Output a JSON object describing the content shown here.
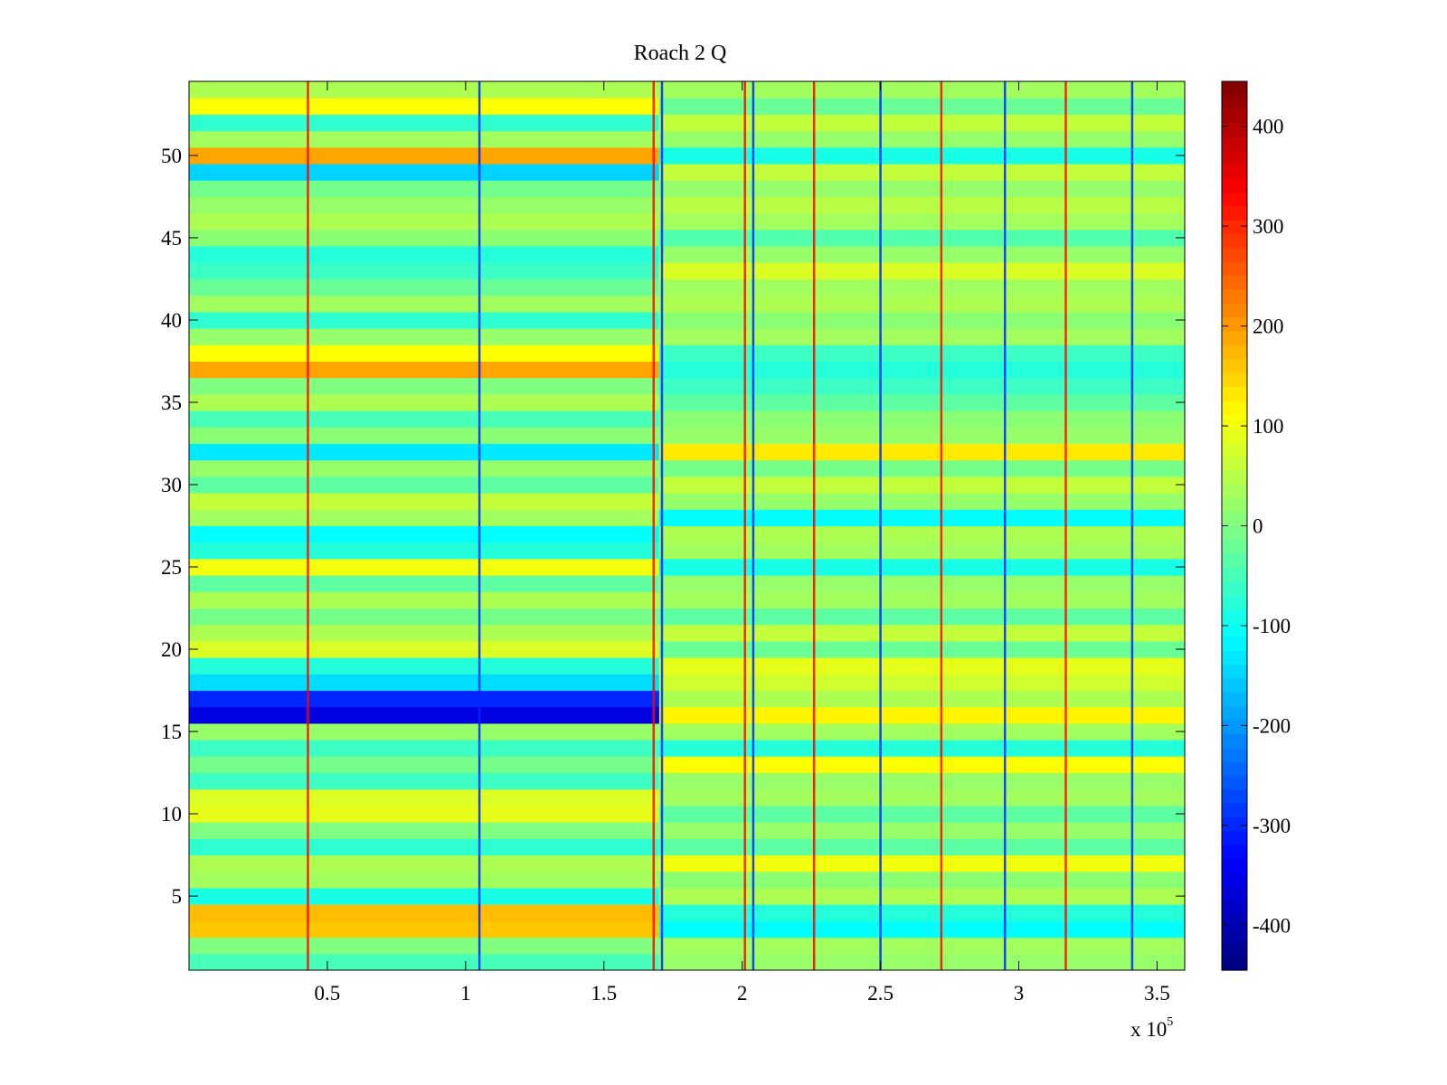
{
  "chart_data": {
    "type": "heatmap",
    "title": "Roach 2 Q",
    "xlabel": "",
    "ylabel": "",
    "x_exponent_label": {
      "base": "x 10",
      "exponent": "5"
    },
    "x_ticks": [
      {
        "value": 0.5,
        "label": "0.5"
      },
      {
        "value": 1.0,
        "label": "1"
      },
      {
        "value": 1.5,
        "label": "1.5"
      },
      {
        "value": 2.0,
        "label": "2"
      },
      {
        "value": 2.5,
        "label": "2.5"
      },
      {
        "value": 3.0,
        "label": "3"
      },
      {
        "value": 3.5,
        "label": "3.5"
      }
    ],
    "y_ticks": [
      {
        "value": 5,
        "label": "5"
      },
      {
        "value": 10,
        "label": "10"
      },
      {
        "value": 15,
        "label": "15"
      },
      {
        "value": 20,
        "label": "20"
      },
      {
        "value": 25,
        "label": "25"
      },
      {
        "value": 30,
        "label": "30"
      },
      {
        "value": 35,
        "label": "35"
      },
      {
        "value": 40,
        "label": "40"
      },
      {
        "value": 45,
        "label": "45"
      },
      {
        "value": 50,
        "label": "50"
      }
    ],
    "xlim": [
      0,
      3.6
    ],
    "x_scale_note": "x 10^5",
    "ylim": [
      0.5,
      54.5
    ],
    "channels": 54,
    "colorbar": {
      "colormap": "jet",
      "range": [
        -445,
        445
      ],
      "ticks": [
        {
          "value": 400,
          "label": "400"
        },
        {
          "value": 300,
          "label": "300"
        },
        {
          "value": 200,
          "label": "200"
        },
        {
          "value": 100,
          "label": "100"
        },
        {
          "value": 0,
          "label": "0"
        },
        {
          "value": -100,
          "label": "-100"
        },
        {
          "value": -200,
          "label": "-200"
        },
        {
          "value": -300,
          "label": "-300"
        },
        {
          "value": -400,
          "label": "-400"
        }
      ]
    },
    "segments": [
      {
        "x_start": 0.0,
        "x_end": 1.7
      },
      {
        "x_start": 1.7,
        "x_end": 3.6
      }
    ],
    "rows": [
      {
        "channel": 1,
        "before": -50,
        "after": 20
      },
      {
        "channel": 2,
        "before": 0,
        "after": 30
      },
      {
        "channel": 3,
        "before": 160,
        "after": -110
      },
      {
        "channel": 4,
        "before": 170,
        "after": -80
      },
      {
        "channel": 5,
        "before": -90,
        "after": 40
      },
      {
        "channel": 6,
        "before": 30,
        "after": 10
      },
      {
        "channel": 7,
        "before": 40,
        "after": 100
      },
      {
        "channel": 8,
        "before": -70,
        "after": -30
      },
      {
        "channel": 9,
        "before": 0,
        "after": 20
      },
      {
        "channel": 10,
        "before": 90,
        "after": -30
      },
      {
        "channel": 11,
        "before": 80,
        "after": 30
      },
      {
        "channel": 12,
        "before": -60,
        "after": 20
      },
      {
        "channel": 13,
        "before": -10,
        "after": 110
      },
      {
        "channel": 14,
        "before": -60,
        "after": -80
      },
      {
        "channel": 15,
        "before": 20,
        "after": 30
      },
      {
        "channel": 16,
        "before": -360,
        "after": 120
      },
      {
        "channel": 17,
        "before": -300,
        "after": 40
      },
      {
        "channel": 18,
        "before": -140,
        "after": 70
      },
      {
        "channel": 19,
        "before": -80,
        "after": 90
      },
      {
        "channel": 20,
        "before": 80,
        "after": -20
      },
      {
        "channel": 21,
        "before": 40,
        "after": 60
      },
      {
        "channel": 22,
        "before": -10,
        "after": -30
      },
      {
        "channel": 23,
        "before": 40,
        "after": 30
      },
      {
        "channel": 24,
        "before": -30,
        "after": 20
      },
      {
        "channel": 25,
        "before": 100,
        "after": -90
      },
      {
        "channel": 26,
        "before": -80,
        "after": 30
      },
      {
        "channel": 27,
        "before": -110,
        "after": 40
      },
      {
        "channel": 28,
        "before": 30,
        "after": -110
      },
      {
        "channel": 29,
        "before": 60,
        "after": 20
      },
      {
        "channel": 30,
        "before": -30,
        "after": 60
      },
      {
        "channel": 31,
        "before": 20,
        "after": -10
      },
      {
        "channel": 32,
        "before": -130,
        "after": 130
      },
      {
        "channel": 33,
        "before": 10,
        "after": 20
      },
      {
        "channel": 34,
        "before": -50,
        "after": 10
      },
      {
        "channel": 35,
        "before": 40,
        "after": -30
      },
      {
        "channel": 36,
        "before": 0,
        "after": -60
      },
      {
        "channel": 37,
        "before": 190,
        "after": -80
      },
      {
        "channel": 38,
        "before": 110,
        "after": -60
      },
      {
        "channel": 39,
        "before": 20,
        "after": 30
      },
      {
        "channel": 40,
        "before": -70,
        "after": 10
      },
      {
        "channel": 41,
        "before": 30,
        "after": 40
      },
      {
        "channel": 42,
        "before": -20,
        "after": 30
      },
      {
        "channel": 43,
        "before": -60,
        "after": 80
      },
      {
        "channel": 44,
        "before": -80,
        "after": 20
      },
      {
        "channel": 45,
        "before": 10,
        "after": -40
      },
      {
        "channel": 46,
        "before": 40,
        "after": 30
      },
      {
        "channel": 47,
        "before": 20,
        "after": 50
      },
      {
        "channel": 48,
        "before": -10,
        "after": 20
      },
      {
        "channel": 49,
        "before": -150,
        "after": 60
      },
      {
        "channel": 50,
        "before": 190,
        "after": -90
      },
      {
        "channel": 51,
        "before": 30,
        "after": 20
      },
      {
        "channel": 52,
        "before": -70,
        "after": 60
      },
      {
        "channel": 53,
        "before": 110,
        "after": -20
      },
      {
        "channel": 54,
        "before": 40,
        "after": 30
      }
    ],
    "vertical_streaks_x": [
      0.43,
      1.05,
      1.68,
      1.71,
      2.01,
      2.04,
      2.26,
      2.5,
      2.72,
      2.95,
      3.17,
      3.41
    ],
    "grid": false,
    "legend": "none"
  }
}
